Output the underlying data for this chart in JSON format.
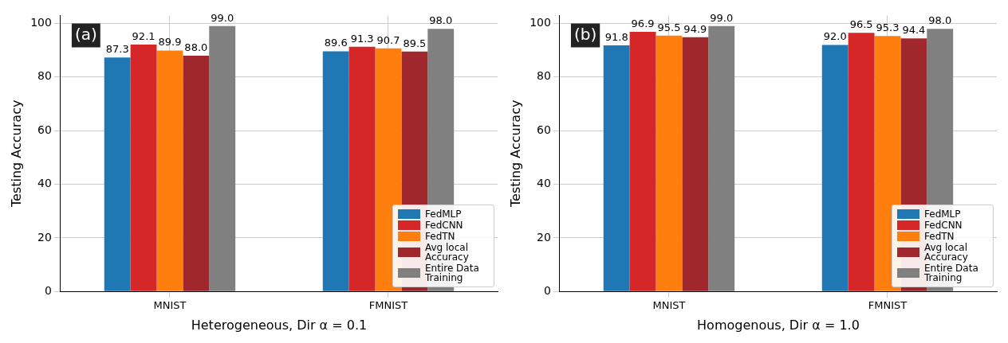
{
  "chart_data": [
    {
      "type": "bar",
      "xlabel": "Heterogeneous, Dir α = 0.1",
      "ylabel": "Testing Accuracy",
      "annotations": [
        "(a)"
      ],
      "categories": [
        "MNIST",
        "FMNIST"
      ],
      "ylim": [
        0,
        103
      ],
      "yticks": [
        0,
        20,
        40,
        60,
        80,
        100
      ],
      "grid": true,
      "legend": "bottom right",
      "series": [
        {
          "name": "FedMLP",
          "color": "#1f77b4",
          "values": [
            87.3,
            89.6
          ],
          "value_labels": [
            "87.3",
            "89.6"
          ]
        },
        {
          "name": "FedCNN",
          "color": "#d62728",
          "values": [
            92.1,
            91.3
          ],
          "value_labels": [
            "92.1",
            "91.3"
          ]
        },
        {
          "name": "FedTN",
          "color": "#ff7f0e",
          "values": [
            89.9,
            90.7
          ],
          "value_labels": [
            "89.9",
            "90.7"
          ]
        },
        {
          "name": "Avg local Accuracy",
          "color": "#a0282c",
          "values": [
            88.0,
            89.5
          ],
          "value_labels": [
            "88.0",
            "89.5"
          ]
        },
        {
          "name": "Entire Data Training",
          "color": "#808080",
          "values": [
            99.0,
            98.0
          ],
          "value_labels": [
            "99.0",
            "98.0"
          ]
        }
      ]
    },
    {
      "type": "bar",
      "xlabel": "Homogenous, Dir α = 1.0",
      "ylabel": "Testing Accuracy",
      "annotations": [
        "(b)"
      ],
      "categories": [
        "MNIST",
        "FMNIST"
      ],
      "ylim": [
        0,
        103
      ],
      "yticks": [
        0,
        20,
        40,
        60,
        80,
        100
      ],
      "grid": true,
      "legend": "bottom right",
      "series": [
        {
          "name": "FedMLP",
          "color": "#1f77b4",
          "values": [
            91.8,
            92.0
          ],
          "value_labels": [
            "91.8",
            "92.0"
          ]
        },
        {
          "name": "FedCNN",
          "color": "#d62728",
          "values": [
            96.9,
            96.5
          ],
          "value_labels": [
            "96.9",
            "96.5"
          ]
        },
        {
          "name": "FedTN",
          "color": "#ff7f0e",
          "values": [
            95.5,
            95.3
          ],
          "value_labels": [
            "95.5",
            "95.3"
          ]
        },
        {
          "name": "Avg local Accuracy",
          "color": "#a0282c",
          "values": [
            94.9,
            94.4
          ],
          "value_labels": [
            "94.9",
            "94.4"
          ]
        },
        {
          "name": "Entire Data Training",
          "color": "#808080",
          "values": [
            99.0,
            98.0
          ],
          "value_labels": [
            "99.0",
            "98.0"
          ]
        }
      ]
    }
  ]
}
